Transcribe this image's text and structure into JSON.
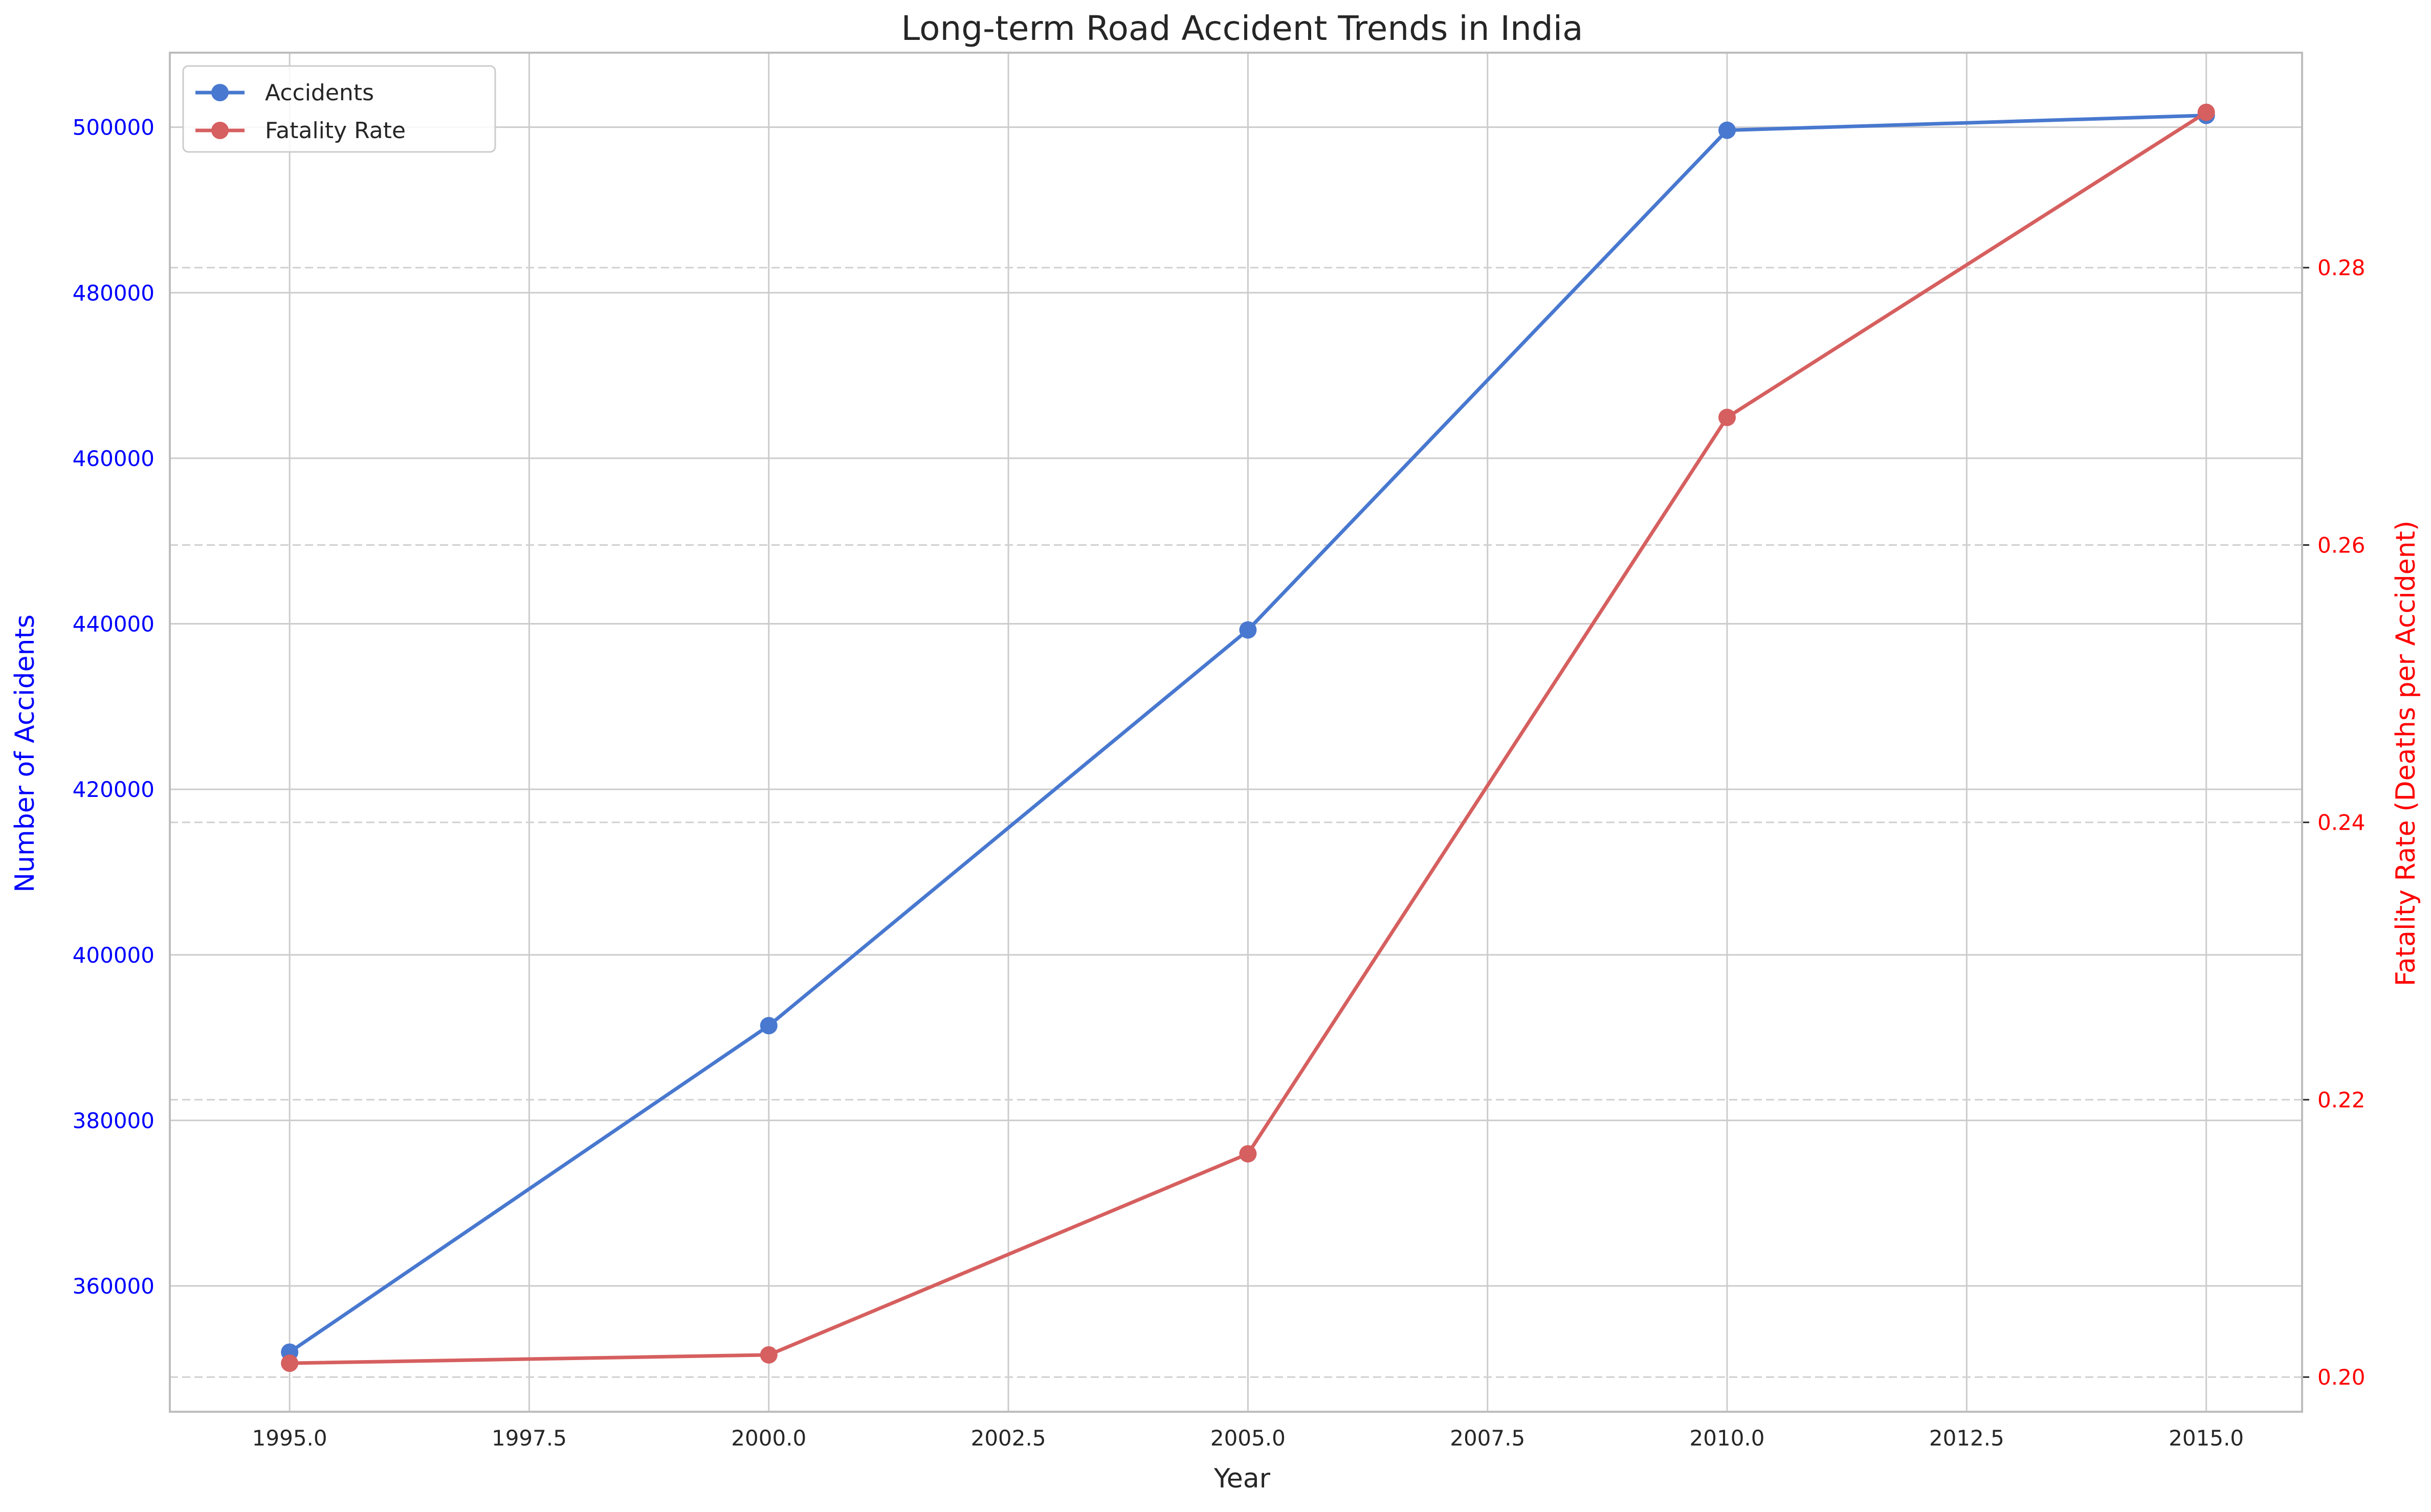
{
  "chart_data": {
    "type": "line",
    "title": "Long-term Road Accident Trends in India",
    "xlabel": "Year",
    "ylabel_left": "Number of Accidents",
    "ylabel_right": "Fatality Rate (Deaths per Accident)",
    "x": [
      1995,
      2000,
      2005,
      2010,
      2015
    ],
    "xlim": [
      1993.75,
      2016.0
    ],
    "x_ticks": [
      1995.0,
      1997.5,
      2000.0,
      2002.5,
      2005.0,
      2007.5,
      2010.0,
      2012.5,
      2015.0
    ],
    "x_tick_labels": [
      "1995.0",
      "1997.5",
      "2000.0",
      "2002.5",
      "2005.0",
      "2007.5",
      "2010.0",
      "2012.5",
      "2015.0"
    ],
    "ylim_left": [
      344800,
      509000
    ],
    "y_ticks_left": [
      360000,
      380000,
      400000,
      420000,
      440000,
      460000,
      480000,
      500000
    ],
    "y_tick_labels_left": [
      "360000",
      "380000",
      "400000",
      "420000",
      "440000",
      "460000",
      "480000",
      "500000"
    ],
    "ylim_right": [
      0.1975,
      0.2955
    ],
    "y_ticks_right": [
      0.2,
      0.22,
      0.24,
      0.26,
      0.28
    ],
    "y_tick_labels_right": [
      "0.20",
      "0.22",
      "0.24",
      "0.26",
      "0.28"
    ],
    "series": [
      {
        "name": "Accidents",
        "axis": "left",
        "color": "#4878cf",
        "values": [
          351999,
          391449,
          439255,
          499628,
          501423
        ]
      },
      {
        "name": "Fatality Rate",
        "axis": "right",
        "color": "#d65f5f",
        "values": [
          0.201,
          0.2016,
          0.2161,
          0.2692,
          0.2912
        ]
      }
    ],
    "legend": {
      "position": "top-left",
      "entries": [
        "Accidents",
        "Fatality Rate"
      ]
    },
    "left_axis_color": "#0000ff",
    "right_axis_color": "#ff0000",
    "grid": true
  }
}
